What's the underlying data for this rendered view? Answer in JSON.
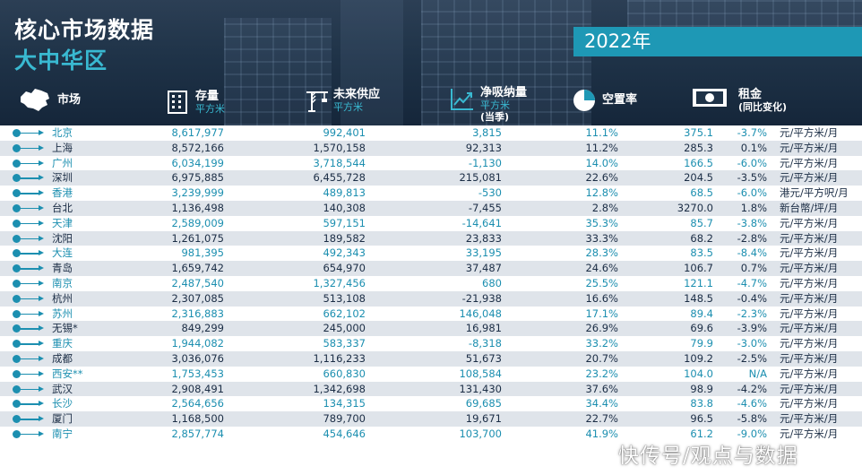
{
  "title": "核心市场数据",
  "subtitle": "大中华区",
  "year": "2022年",
  "columns": {
    "market": {
      "label": "市场"
    },
    "stock": {
      "label": "存量",
      "unit": "平方米"
    },
    "future": {
      "label": "未来供应",
      "unit": "平方米"
    },
    "absorption": {
      "label": "净吸纳量",
      "unit": "平方米",
      "note": "(当季)"
    },
    "vacancy": {
      "label": "空置率"
    },
    "rent": {
      "label": "租金",
      "note": "(同比变化)"
    }
  },
  "rows": [
    {
      "city": "北京",
      "stock": "8,617,977",
      "future": "992,401",
      "absorption": "3,815",
      "vacancy": "11.1%",
      "rent": "375.1",
      "change": "-3.7%",
      "unit": "元/平方米/月",
      "highlight": true
    },
    {
      "city": "上海",
      "stock": "8,572,166",
      "future": "1,570,158",
      "absorption": "92,313",
      "vacancy": "11.2%",
      "rent": "285.3",
      "change": "0.1%",
      "unit": "元/平方米/月",
      "highlight": false
    },
    {
      "city": "广州",
      "stock": "6,034,199",
      "future": "3,718,544",
      "absorption": "-1,130",
      "vacancy": "14.0%",
      "rent": "166.5",
      "change": "-6.0%",
      "unit": "元/平方米/月",
      "highlight": true
    },
    {
      "city": "深圳",
      "stock": "6,975,885",
      "future": "6,455,728",
      "absorption": "215,081",
      "vacancy": "22.6%",
      "rent": "204.5",
      "change": "-3.5%",
      "unit": "元/平方米/月",
      "highlight": false
    },
    {
      "city": "香港",
      "stock": "3,239,999",
      "future": "489,813",
      "absorption": "-530",
      "vacancy": "12.8%",
      "rent": "68.5",
      "change": "-6.0%",
      "unit": "港元/平方呎/月",
      "highlight": true
    },
    {
      "city": "台北",
      "stock": "1,136,498",
      "future": "140,308",
      "absorption": "-7,455",
      "vacancy": "2.8%",
      "rent": "3270.0",
      "change": "1.8%",
      "unit": "新台幣/坪/月",
      "highlight": false
    },
    {
      "city": "天津",
      "stock": "2,589,009",
      "future": "597,151",
      "absorption": "-14,641",
      "vacancy": "35.3%",
      "rent": "85.7",
      "change": "-3.8%",
      "unit": "元/平方米/月",
      "highlight": true
    },
    {
      "city": "沈阳",
      "stock": "1,261,075",
      "future": "189,582",
      "absorption": "23,833",
      "vacancy": "33.3%",
      "rent": "68.2",
      "change": "-2.8%",
      "unit": "元/平方米/月",
      "highlight": false
    },
    {
      "city": "大连",
      "stock": "981,395",
      "future": "492,343",
      "absorption": "33,195",
      "vacancy": "28.3%",
      "rent": "83.5",
      "change": "-8.4%",
      "unit": "元/平方米/月",
      "highlight": true
    },
    {
      "city": "青岛",
      "stock": "1,659,742",
      "future": "654,970",
      "absorption": "37,487",
      "vacancy": "24.6%",
      "rent": "106.7",
      "change": "0.7%",
      "unit": "元/平方米/月",
      "highlight": false
    },
    {
      "city": "南京",
      "stock": "2,487,540",
      "future": "1,327,456",
      "absorption": "680",
      "vacancy": "25.5%",
      "rent": "121.1",
      "change": "-4.7%",
      "unit": "元/平方米/月",
      "highlight": true
    },
    {
      "city": "杭州",
      "stock": "2,307,085",
      "future": "513,108",
      "absorption": "-21,938",
      "vacancy": "16.6%",
      "rent": "148.5",
      "change": "-0.4%",
      "unit": "元/平方米/月",
      "highlight": false
    },
    {
      "city": "苏州",
      "stock": "2,316,883",
      "future": "662,102",
      "absorption": "146,048",
      "vacancy": "17.1%",
      "rent": "89.4",
      "change": "-2.3%",
      "unit": "元/平方米/月",
      "highlight": true
    },
    {
      "city": "无锡*",
      "stock": "849,299",
      "future": "245,000",
      "absorption": "16,981",
      "vacancy": "26.9%",
      "rent": "69.6",
      "change": "-3.9%",
      "unit": "元/平方米/月",
      "highlight": false
    },
    {
      "city": "重庆",
      "stock": "1,944,082",
      "future": "583,337",
      "absorption": "-8,318",
      "vacancy": "33.2%",
      "rent": "79.9",
      "change": "-3.0%",
      "unit": "元/平方米/月",
      "highlight": true
    },
    {
      "city": "成都",
      "stock": "3,036,076",
      "future": "1,116,233",
      "absorption": "51,673",
      "vacancy": "20.7%",
      "rent": "109.2",
      "change": "-2.5%",
      "unit": "元/平方米/月",
      "highlight": false
    },
    {
      "city": "西安**",
      "stock": "1,753,453",
      "future": "660,830",
      "absorption": "108,584",
      "vacancy": "23.2%",
      "rent": "104.0",
      "change": "N/A",
      "unit": "元/平方米/月",
      "highlight": true
    },
    {
      "city": "武汉",
      "stock": "2,908,491",
      "future": "1,342,698",
      "absorption": "131,430",
      "vacancy": "37.6%",
      "rent": "98.9",
      "change": "-4.2%",
      "unit": "元/平方米/月",
      "highlight": false
    },
    {
      "city": "长沙",
      "stock": "2,564,656",
      "future": "134,315",
      "absorption": "69,685",
      "vacancy": "34.4%",
      "rent": "83.8",
      "change": "-4.6%",
      "unit": "元/平方米/月",
      "highlight": true
    },
    {
      "city": "厦门",
      "stock": "1,168,500",
      "future": "789,700",
      "absorption": "19,671",
      "vacancy": "22.7%",
      "rent": "96.5",
      "change": "-5.8%",
      "unit": "元/平方米/月",
      "highlight": false
    },
    {
      "city": "南宁",
      "stock": "2,857,774",
      "future": "454,646",
      "absorption": "103,700",
      "vacancy": "41.9%",
      "rent": "61.2",
      "change": "-9.0%",
      "unit": "元/平方米/月",
      "highlight": true
    }
  ],
  "watermark": "快传号/观点与数据",
  "colors": {
    "header_bg": "#1f3348",
    "accent": "#1e98b5",
    "highlight_text": "#1c8fb0",
    "dark_text": "#1b2d45",
    "row_stripe": "#dfe4ea"
  }
}
